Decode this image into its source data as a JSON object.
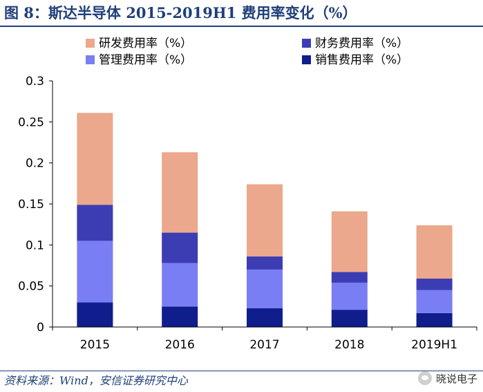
{
  "figure": {
    "title": "图 8：斯达半导体 2015-2019H1 费用率变化（%）",
    "source": "资料来源：Wind，安信证券研究中心",
    "watermark": "晓说电子"
  },
  "chart_data": {
    "type": "bar",
    "stacked": true,
    "categories": [
      "2015",
      "2016",
      "2017",
      "2018",
      "2019H1"
    ],
    "series": [
      {
        "name": "销售费用率（%）",
        "color": "#0f1e8c",
        "values": [
          0.03,
          0.025,
          0.023,
          0.021,
          0.017
        ]
      },
      {
        "name": "管理费用率（%）",
        "color": "#7a7ef5",
        "values": [
          0.075,
          0.053,
          0.047,
          0.033,
          0.028
        ]
      },
      {
        "name": "财务费用率（%）",
        "color": "#3d3db3",
        "values": [
          0.044,
          0.037,
          0.016,
          0.013,
          0.014
        ]
      },
      {
        "name": "研发费用率（%）",
        "color": "#eba88c",
        "values": [
          0.112,
          0.098,
          0.088,
          0.074,
          0.065
        ]
      }
    ],
    "ylim": [
      0,
      0.3
    ],
    "yticks": [
      "0",
      "0.05",
      "0.1",
      "0.15",
      "0.2",
      "0.25",
      "0.3"
    ],
    "legend_position": "top",
    "grid": false
  }
}
